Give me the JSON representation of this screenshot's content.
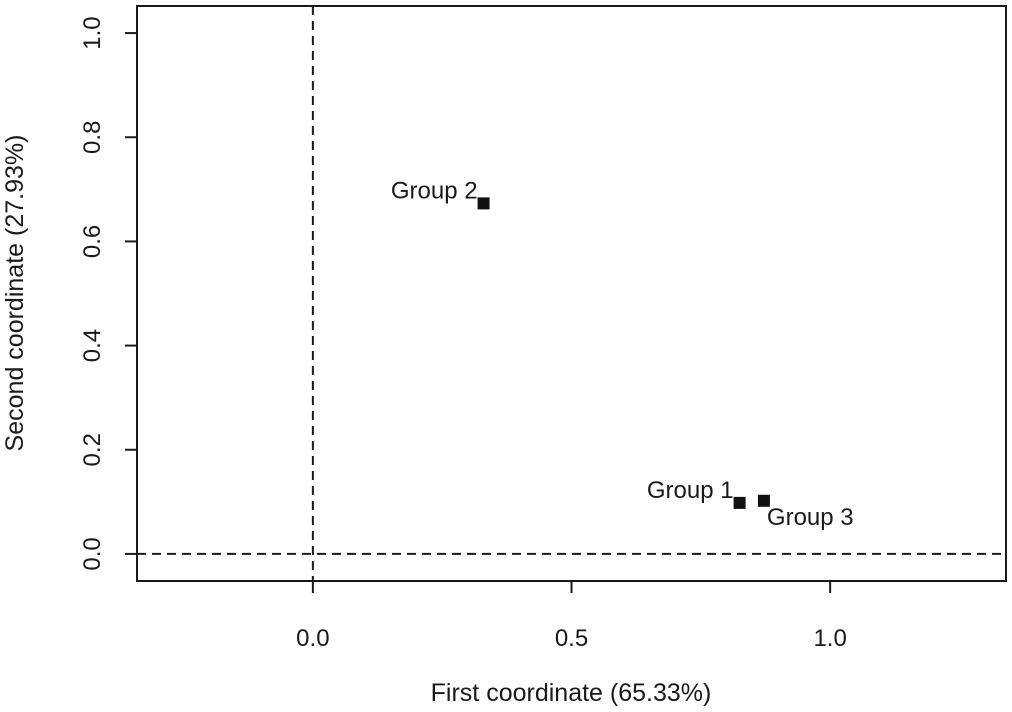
{
  "chart_data": {
    "type": "scatter",
    "title": "",
    "xlabel": "First coordinate (65.33%)",
    "ylabel": "Second coordinate (27.93%)",
    "xlim": [
      -0.34,
      1.34
    ],
    "ylim": [
      -0.052,
      1.052
    ],
    "x_ticks": [
      {
        "value": 0.0,
        "label": "0.0"
      },
      {
        "value": 0.5,
        "label": "0.5"
      },
      {
        "value": 1.0,
        "label": "1.0"
      }
    ],
    "y_ticks": [
      {
        "value": 0.0,
        "label": "0.0"
      },
      {
        "value": 0.2,
        "label": "0.2"
      },
      {
        "value": 0.4,
        "label": "0.4"
      },
      {
        "value": 0.6,
        "label": "0.6"
      },
      {
        "value": 0.8,
        "label": "0.8"
      },
      {
        "value": 1.0,
        "label": "1.0"
      }
    ],
    "reference_lines": {
      "x": 0.0,
      "y": 0.0,
      "style": "dashed"
    },
    "grid": false,
    "marker": "filled-square",
    "points": [
      {
        "label": "Group 2",
        "x": 0.33,
        "y": 0.673,
        "label_position": "left"
      },
      {
        "label": "Group 1",
        "x": 0.825,
        "y": 0.098,
        "label_position": "left"
      },
      {
        "label": "Group 3",
        "x": 0.872,
        "y": 0.102,
        "label_position": "below-right"
      }
    ]
  }
}
